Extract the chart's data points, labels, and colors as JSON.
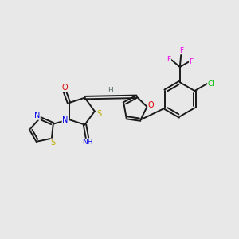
{
  "bg_color": "#e8e8e8",
  "bond_color": "#1a1a1a",
  "bond_width": 1.4,
  "atom_colors": {
    "N": "#0000ee",
    "O": "#dd0000",
    "S": "#bbaa00",
    "F": "#ee00ee",
    "Cl": "#00bb00",
    "C": "#1a1a1a",
    "H": "#607070"
  },
  "figsize": [
    3.0,
    3.0
  ],
  "dpi": 100
}
